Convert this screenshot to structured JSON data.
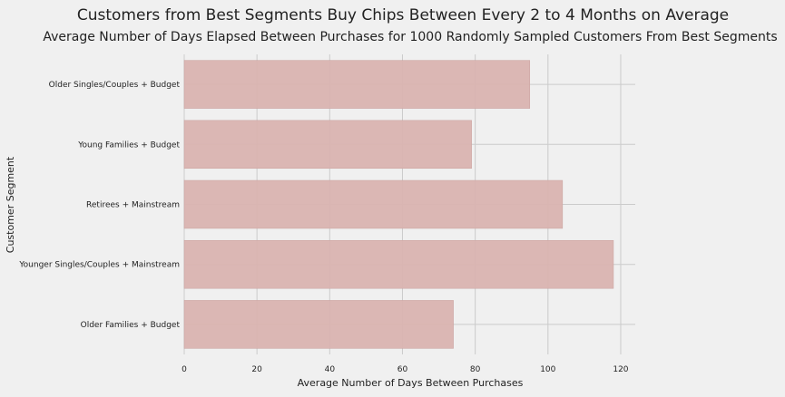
{
  "chart_data": {
    "type": "bar",
    "orientation": "horizontal",
    "title": "Customers from Best Segments Buy Chips Between Every 2 to 4 Months on Average",
    "subtitle": "Average Number of Days Elapsed Between Purchases for 1000 Randomly Sampled Customers From Best Segments",
    "xlabel": "Average Number of Days Between Purchases",
    "ylabel": "Customer Segment",
    "categories": [
      "Older Singles/Couples + Budget",
      "Young Families + Budget",
      "Retirees + Mainstream",
      "Younger Singles/Couples + Mainstream",
      "Older Families + Budget"
    ],
    "values": [
      95,
      79,
      104,
      118,
      74
    ],
    "xlim": [
      0,
      124
    ],
    "xticks": [
      0,
      20,
      40,
      60,
      80,
      100,
      120
    ],
    "grid": true,
    "bar_color": "#d9b3b0",
    "bar_edge_color": "#c9a19e",
    "grid_color": "#cbcbcb",
    "background_color": "#f0f0f0"
  }
}
